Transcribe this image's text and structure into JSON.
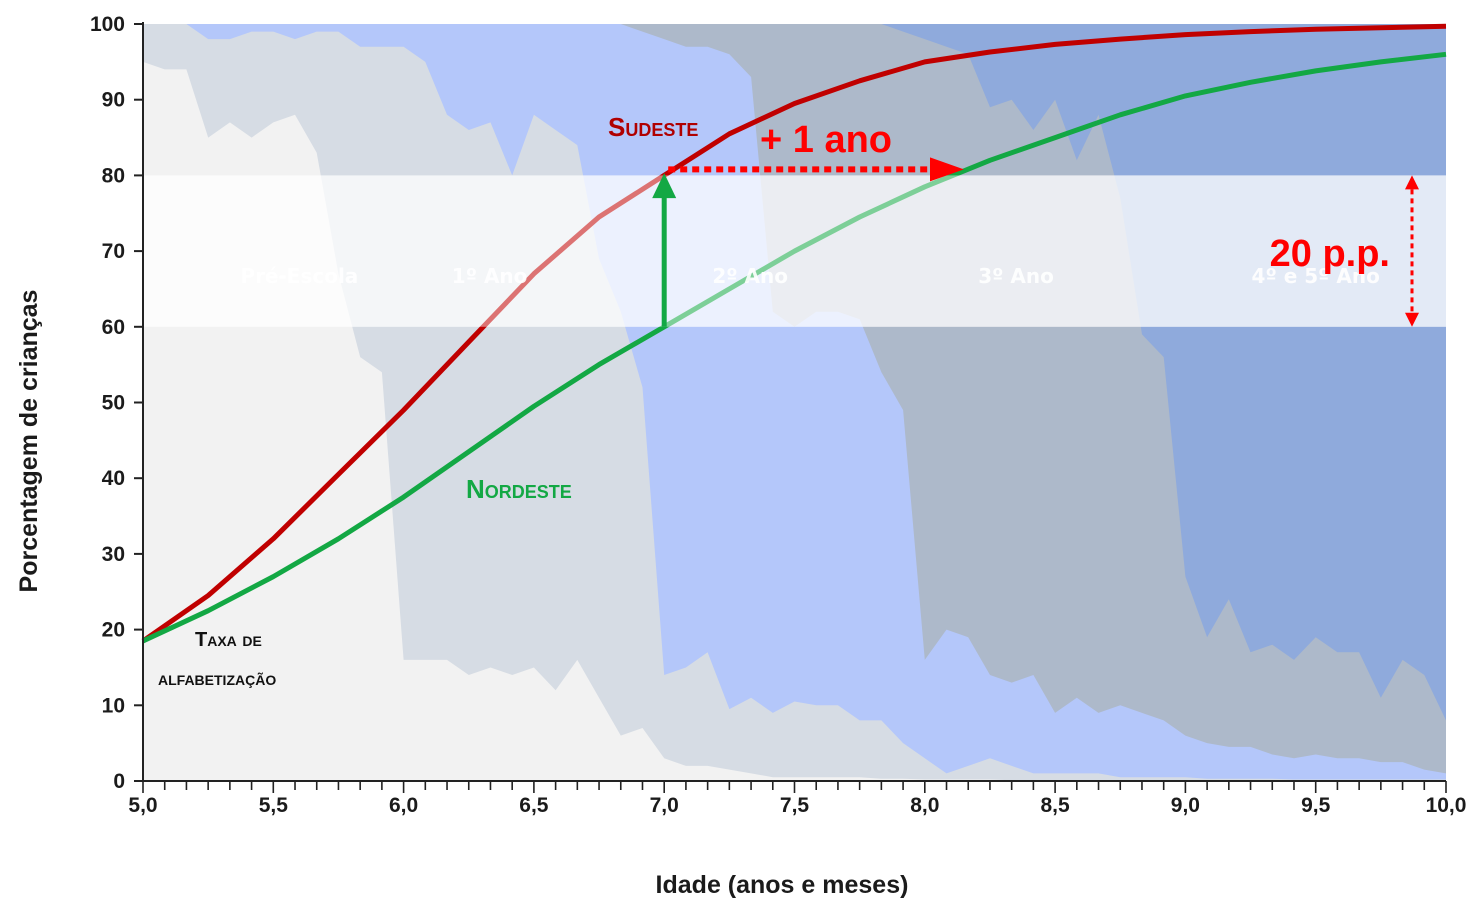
{
  "chart_data": {
    "type": "area",
    "title": "",
    "xlabel": "Idade (anos e meses)",
    "ylabel": "Porcentagem de crianças",
    "xlim": [
      5.0,
      10.0
    ],
    "ylim": [
      0,
      100
    ],
    "x_major_ticks": [
      5.0,
      5.5,
      6.0,
      6.5,
      7.0,
      7.5,
      8.0,
      8.5,
      9.0,
      9.5,
      10.0
    ],
    "x_tick_labels": [
      "5,0",
      "5,5",
      "6,0",
      "6,5",
      "7,0",
      "7,5",
      "8,0",
      "8,5",
      "9,0",
      "9,5",
      "10,0"
    ],
    "x_minor_step": 0.0833,
    "y_ticks": [
      0,
      10,
      20,
      30,
      40,
      50,
      60,
      70,
      80,
      90,
      100
    ],
    "y_tick_labels": [
      "0",
      "10",
      "20",
      "30",
      "40",
      "50",
      "60",
      "70",
      "80",
      "90",
      "100"
    ],
    "grid": false,
    "stacked_areas": {
      "x": [
        5.0,
        5.0833,
        5.1667,
        5.25,
        5.3333,
        5.4167,
        5.5,
        5.5833,
        5.6667,
        5.75,
        5.8333,
        5.9167,
        6.0,
        6.0833,
        6.1667,
        6.25,
        6.3333,
        6.4167,
        6.5,
        6.5833,
        6.6667,
        6.75,
        6.8333,
        6.9167,
        7.0,
        7.0833,
        7.1667,
        7.25,
        7.3333,
        7.4167,
        7.5,
        7.5833,
        7.6667,
        7.75,
        7.8333,
        7.9167,
        8.0,
        8.0833,
        8.1667,
        8.25,
        8.3333,
        8.4167,
        8.5,
        8.5833,
        8.6667,
        8.75,
        8.8333,
        8.9167,
        9.0,
        9.0833,
        9.1667,
        9.25,
        9.3333,
        9.4167,
        9.5,
        9.5833,
        9.6667,
        9.75,
        9.8333,
        9.9167,
        10.0
      ],
      "series": [
        {
          "name": "Pré-Escola",
          "color": "#f2f2f2",
          "values": [
            95,
            94,
            94,
            85,
            87,
            85,
            87,
            88,
            83,
            67,
            56,
            54,
            16,
            16,
            16,
            14,
            15,
            14,
            15,
            12,
            16,
            11,
            6,
            7,
            3,
            2,
            2,
            1.5,
            1,
            0.5,
            0.5,
            0.5,
            0.5,
            0.5,
            0.3,
            0.3,
            0.2,
            0.2,
            0.2,
            0.2,
            0.1,
            0.1,
            0.1,
            0.1,
            0.1,
            0.1,
            0.1,
            0,
            0,
            0,
            0,
            0,
            0,
            0,
            0,
            0,
            0,
            0,
            0,
            0,
            0
          ]
        },
        {
          "name": "1º Ano",
          "color": "#d6dce4",
          "values": [
            100,
            100,
            100,
            98,
            98,
            99,
            99,
            98,
            99,
            99,
            97,
            97,
            97,
            95,
            88,
            86,
            87,
            80,
            88,
            86,
            84,
            69,
            62,
            52,
            14,
            15,
            17,
            9.5,
            11,
            9,
            10.5,
            10,
            10,
            8,
            8,
            5,
            3,
            1,
            2,
            3,
            2,
            1,
            1,
            1,
            1,
            0.5,
            0.5,
            0.5,
            0.5,
            0.3,
            0.3,
            0.3,
            0.3,
            0.2,
            0.2,
            0.2,
            0.2,
            0.2,
            0.2,
            0.2,
            0.2
          ]
        },
        {
          "name": "2º Ano",
          "color": "#b4c7fa",
          "values": [
            100,
            100,
            100,
            100,
            100,
            100,
            100,
            100,
            100,
            100,
            100,
            100,
            100,
            100,
            100,
            100,
            100,
            100,
            100,
            100,
            100,
            100,
            100,
            99,
            98,
            97,
            97,
            96,
            93,
            62,
            60,
            62,
            62,
            61,
            54,
            49,
            16,
            20,
            19,
            14,
            13,
            14,
            9,
            11,
            9,
            10,
            9,
            8,
            6,
            5,
            4.5,
            4.5,
            3.5,
            3,
            3.5,
            3,
            3,
            2.5,
            2.5,
            1.5,
            1
          ]
        },
        {
          "name": "3º Ano",
          "color": "#adb9ca",
          "values": [
            100,
            100,
            100,
            100,
            100,
            100,
            100,
            100,
            100,
            100,
            100,
            100,
            100,
            100,
            100,
            100,
            100,
            100,
            100,
            100,
            100,
            100,
            100,
            100,
            100,
            100,
            100,
            100,
            100,
            100,
            100,
            100,
            100,
            100,
            100,
            99,
            98,
            97,
            96,
            89,
            90,
            86,
            90,
            82,
            88,
            77,
            59,
            56,
            27,
            19,
            24,
            17,
            18,
            16,
            19,
            17,
            17,
            11,
            16,
            14,
            8
          ]
        },
        {
          "name": "4º e 5º Ano",
          "color": "#8faadc",
          "values": [
            100,
            100,
            100,
            100,
            100,
            100,
            100,
            100,
            100,
            100,
            100,
            100,
            100,
            100,
            100,
            100,
            100,
            100,
            100,
            100,
            100,
            100,
            100,
            100,
            100,
            100,
            100,
            100,
            100,
            100,
            100,
            100,
            100,
            100,
            100,
            100,
            100,
            100,
            100,
            100,
            100,
            100,
            100,
            100,
            100,
            100,
            100,
            100,
            100,
            100,
            100,
            100,
            100,
            100,
            100,
            100,
            100,
            100,
            100,
            100,
            100
          ]
        }
      ]
    },
    "lines": [
      {
        "name": "Sudeste",
        "color": "#c00000",
        "x": [
          5.0,
          5.25,
          5.5,
          5.75,
          6.0,
          6.25,
          6.5,
          6.75,
          7.0,
          7.25,
          7.5,
          7.75,
          8.0,
          8.25,
          8.5,
          8.75,
          9.0,
          9.25,
          9.5,
          9.75,
          10.0
        ],
        "values": [
          18.5,
          24.5,
          32,
          40.5,
          49,
          58,
          67,
          74.5,
          80,
          85.5,
          89.5,
          92.5,
          95,
          96.3,
          97.3,
          98,
          98.6,
          99,
          99.3,
          99.5,
          99.7
        ]
      },
      {
        "name": "Nordeste",
        "color": "#13a844",
        "x": [
          5.0,
          5.25,
          5.5,
          5.75,
          6.0,
          6.25,
          6.5,
          6.75,
          7.0,
          7.25,
          7.5,
          7.75,
          8.0,
          8.25,
          8.5,
          8.75,
          9.0,
          9.25,
          9.5,
          9.75,
          10.0
        ],
        "values": [
          18.5,
          22.5,
          27,
          32,
          37.5,
          43.5,
          49.5,
          55,
          60,
          65,
          70,
          74.5,
          78.5,
          82,
          85,
          88,
          90.5,
          92.3,
          93.8,
          95,
          96
        ]
      }
    ],
    "band": {
      "y_from": 60,
      "y_to": 80
    },
    "annotations": {
      "sudeste": "Sudeste",
      "nordeste": "Nordeste",
      "taxa_line1": "Taxa de",
      "taxa_line2": "alfabetização",
      "ano_gap": "+ 1 ano",
      "pp_gap": "20 p.p."
    },
    "stage_labels": [
      {
        "name": "Pré-Escola",
        "x": 5.6
      },
      {
        "name": "1º Ano",
        "x": 6.33
      },
      {
        "name": "2º Ano",
        "x": 7.33
      },
      {
        "name": "3º Ano",
        "x": 8.35
      },
      {
        "name": "4º e 5º Ano",
        "x": 9.5
      }
    ]
  }
}
